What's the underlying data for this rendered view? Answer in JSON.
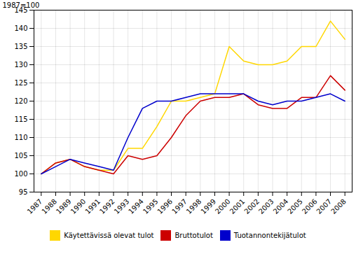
{
  "chart_data": {
    "type": "line",
    "ylabel": "1987=100",
    "x": [
      1987,
      1988,
      1989,
      1990,
      1991,
      1992,
      1993,
      1994,
      1995,
      1996,
      1997,
      1998,
      1999,
      2000,
      2001,
      2002,
      2003,
      2004,
      2005,
      2006,
      2007,
      2008
    ],
    "series": [
      {
        "name": "Käytettävissä olevat tulot",
        "color": "#FFD700",
        "values": [
          100,
          103,
          104,
          102,
          101,
          101,
          107,
          107,
          113,
          120,
          120,
          121,
          122,
          135,
          131,
          130,
          130,
          131,
          135,
          135,
          142,
          137
        ]
      },
      {
        "name": "Bruttotulot",
        "color": "#CC0000",
        "values": [
          100,
          103,
          104,
          102,
          101,
          100,
          105,
          104,
          105,
          110,
          116,
          120,
          121,
          121,
          122,
          119,
          118,
          118,
          121,
          121,
          127,
          123
        ]
      },
      {
        "name": "Tuotannontekijätulot",
        "color": "#0000CC",
        "values": [
          100,
          102,
          104,
          103,
          102,
          101,
          110,
          118,
          120,
          120,
          121,
          122,
          122,
          122,
          122,
          120,
          119,
          120,
          120,
          121,
          122,
          120
        ]
      }
    ],
    "xlim": [
      1986.5,
      2008.5
    ],
    "xticks": [
      1987,
      1988,
      1989,
      1990,
      1991,
      1992,
      1993,
      1994,
      1995,
      1996,
      1997,
      1998,
      1999,
      2000,
      2001,
      2002,
      2003,
      2004,
      2005,
      2006,
      2007,
      2008
    ],
    "ylim": [
      95,
      145
    ],
    "yticks": [
      95,
      100,
      105,
      110,
      115,
      120,
      125,
      130,
      135,
      140,
      145
    ],
    "grid": true,
    "legend": "bottom"
  }
}
